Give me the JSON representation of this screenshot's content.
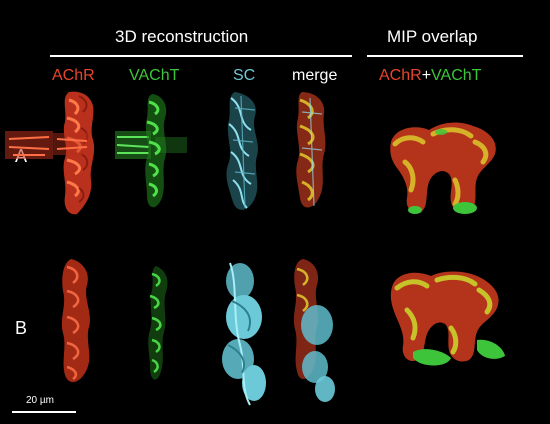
{
  "headers": {
    "reconstruction": "3D reconstruction",
    "mip": "MIP overlap"
  },
  "columns": {
    "achr": "AChR",
    "vacht": "VAChT",
    "sc": "SC",
    "merge": "merge",
    "mip_achr": "AChR",
    "mip_plus": "+",
    "mip_vacht": "VAChT"
  },
  "rows": {
    "a": "A",
    "b": "B"
  },
  "scale_bar": {
    "label": "20 µm"
  },
  "colors": {
    "achr": "#e8452a",
    "vacht": "#3ec43a",
    "sc": "#6ec8d6",
    "overlap": "#d6b228",
    "background": "#000000",
    "text": "#ffffff"
  }
}
